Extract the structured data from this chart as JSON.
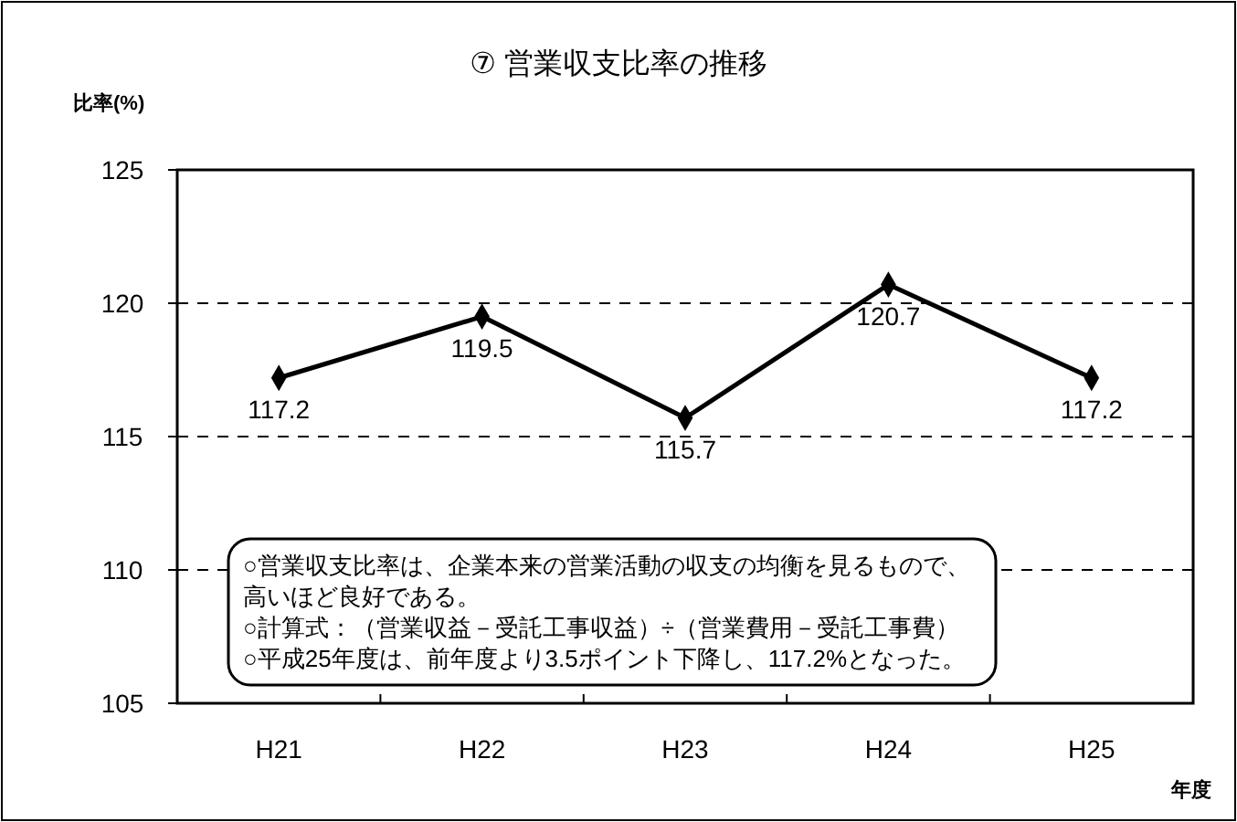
{
  "chart_data": {
    "type": "line",
    "title": "⑦ 営業収支比率の推移",
    "ylabel": "比率(%)",
    "xlabel": "年度",
    "categories": [
      "H21",
      "H22",
      "H23",
      "H24",
      "H25"
    ],
    "series": [
      {
        "color": "#000000",
        "values": [
          117.2,
          119.5,
          115.7,
          120.7,
          117.2
        ]
      }
    ],
    "ylim": [
      105,
      125
    ],
    "yticks": [
      105,
      110,
      115,
      120,
      125
    ],
    "grid": "y",
    "marker": "diamond",
    "line_style": "solid",
    "data_labels": true,
    "annotations": [
      "○営業収支比率は、企業本来の営業活動の収支の均衡を見るもので、高いほど良好である。",
      "○計算式：（営業収益－受託工事収益）÷（営業費用－受託工事費）",
      "○平成25年度は、前年度より3.5ポイント下降し、117.2%となった。"
    ]
  }
}
